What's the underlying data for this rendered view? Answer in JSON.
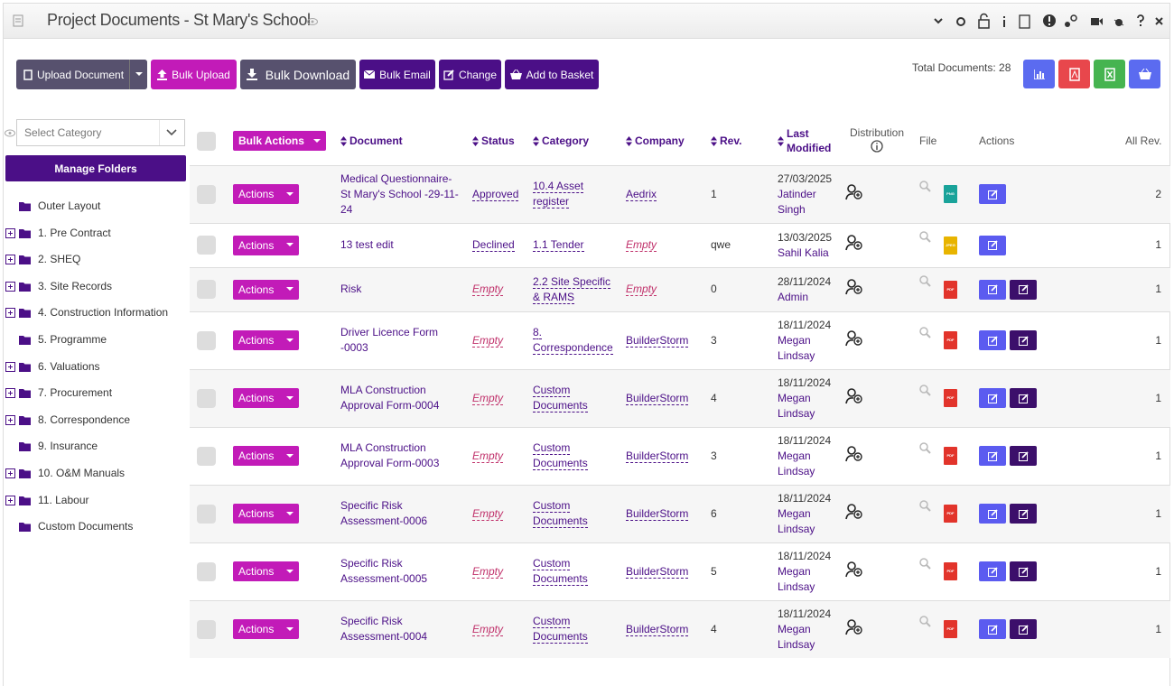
{
  "header": {
    "title": "Project Documents - St Mary's School"
  },
  "toolbar": {
    "upload": "Upload Document",
    "bulk_upload": "Bulk Upload",
    "bulk_download": "Bulk Download",
    "bulk_email": "Bulk Email",
    "change": "Change",
    "add_to_basket": "Add to Basket",
    "total": "Total Documents: 28"
  },
  "sidebar": {
    "select_placeholder": "Select Category",
    "manage": "Manage Folders",
    "folders": [
      {
        "label": "Outer Layout",
        "expandable": false
      },
      {
        "label": "1. Pre Contract",
        "expandable": true
      },
      {
        "label": "2. SHEQ",
        "expandable": true
      },
      {
        "label": "3. Site Records",
        "expandable": true
      },
      {
        "label": "4. Construction Information",
        "expandable": true
      },
      {
        "label": "5. Programme",
        "expandable": false
      },
      {
        "label": "6. Valuations",
        "expandable": true
      },
      {
        "label": "7. Procurement",
        "expandable": true
      },
      {
        "label": "8. Correspondence",
        "expandable": true
      },
      {
        "label": "9. Insurance",
        "expandable": false
      },
      {
        "label": "10. O&M Manuals",
        "expandable": true
      },
      {
        "label": "11. Labour",
        "expandable": true
      },
      {
        "label": "Custom Documents",
        "expandable": false
      }
    ]
  },
  "table": {
    "columns": [
      {
        "label": "Bulk Actions",
        "sortable": false,
        "button": true
      },
      {
        "label": "Document",
        "sortable": true
      },
      {
        "label": "Status",
        "sortable": true
      },
      {
        "label": "Category",
        "sortable": true
      },
      {
        "label": "Company",
        "sortable": true
      },
      {
        "label": "Rev.",
        "sortable": true
      },
      {
        "label": "Last Modified",
        "sortable": true
      },
      {
        "label": "Distribution",
        "sortable": false,
        "info": true
      },
      {
        "label": "File",
        "sortable": false
      },
      {
        "label": "Actions",
        "sortable": false
      },
      {
        "label": "All Rev.",
        "sortable": false
      }
    ],
    "rows": [
      {
        "action": "Actions",
        "document": "Medical Questionnaire-St Mary's School -29-11-24",
        "status": {
          "text": "Approved",
          "missing": false
        },
        "category": "10.4 Asset register",
        "company": {
          "text": "Aedrix",
          "missing": false
        },
        "rev": "1",
        "modified": {
          "date": "27/03/2025",
          "by": "Jatinder Singh"
        },
        "file": "PNG",
        "second_edit": false,
        "all_rev": 2
      },
      {
        "action": "Actions",
        "document": "13 test edit",
        "status": {
          "text": "Declined",
          "missing": false
        },
        "category": "1.1 Tender",
        "company": {
          "text": "Empty",
          "missing": true
        },
        "rev": "qwe",
        "modified": {
          "date": "13/03/2025",
          "by": "Sahil Kalia"
        },
        "file": "JPEG",
        "second_edit": false,
        "all_rev": 1
      },
      {
        "action": "Actions",
        "document": "Risk",
        "status": {
          "text": "Empty",
          "missing": true
        },
        "category": "2.2 Site Specific & RAMS",
        "company": {
          "text": "Empty",
          "missing": true
        },
        "rev": "0",
        "modified": {
          "date": "28/11/2024",
          "by": "Admin"
        },
        "file": "PDF",
        "second_edit": true,
        "all_rev": 1
      },
      {
        "action": "Actions",
        "document": "Driver Licence Form -0003",
        "status": {
          "text": "Empty",
          "missing": true
        },
        "category": "8. Correspondence",
        "company": {
          "text": "BuilderStorm",
          "missing": false
        },
        "rev": "3",
        "modified": {
          "date": "18/11/2024",
          "by": "Megan Lindsay"
        },
        "file": "PDF",
        "second_edit": true,
        "all_rev": 1
      },
      {
        "action": "Actions",
        "document": "MLA Construction Approval Form-0004",
        "status": {
          "text": "Empty",
          "missing": true
        },
        "category": "Custom Documents",
        "company": {
          "text": "BuilderStorm",
          "missing": false
        },
        "rev": "4",
        "modified": {
          "date": "18/11/2024",
          "by": "Megan Lindsay"
        },
        "file": "PDF",
        "second_edit": true,
        "all_rev": 1
      },
      {
        "action": "Actions",
        "document": "MLA Construction Approval Form-0003",
        "status": {
          "text": "Empty",
          "missing": true
        },
        "category": "Custom Documents",
        "company": {
          "text": "BuilderStorm",
          "missing": false
        },
        "rev": "3",
        "modified": {
          "date": "18/11/2024",
          "by": "Megan Lindsay"
        },
        "file": "PDF",
        "second_edit": true,
        "all_rev": 1
      },
      {
        "action": "Actions",
        "document": "Specific Risk Assessment-0006",
        "status": {
          "text": "Empty",
          "missing": true
        },
        "category": "Custom Documents",
        "company": {
          "text": "BuilderStorm",
          "missing": false
        },
        "rev": "6",
        "modified": {
          "date": "18/11/2024",
          "by": "Megan Lindsay"
        },
        "file": "PDF",
        "second_edit": true,
        "all_rev": 1
      },
      {
        "action": "Actions",
        "document": "Specific Risk Assessment-0005",
        "status": {
          "text": "Empty",
          "missing": true
        },
        "category": "Custom Documents",
        "company": {
          "text": "BuilderStorm",
          "missing": false
        },
        "rev": "5",
        "modified": {
          "date": "18/11/2024",
          "by": "Megan Lindsay"
        },
        "file": "PDF",
        "second_edit": true,
        "all_rev": 1
      },
      {
        "action": "Actions",
        "document": "Specific Risk Assessment-0004",
        "status": {
          "text": "Empty",
          "missing": true
        },
        "category": "Custom Documents",
        "company": {
          "text": "BuilderStorm",
          "missing": false
        },
        "rev": "4",
        "modified": {
          "date": "18/11/2024",
          "by": "Megan Lindsay"
        },
        "file": "PDF",
        "second_edit": true,
        "all_rev": 1
      }
    ]
  }
}
